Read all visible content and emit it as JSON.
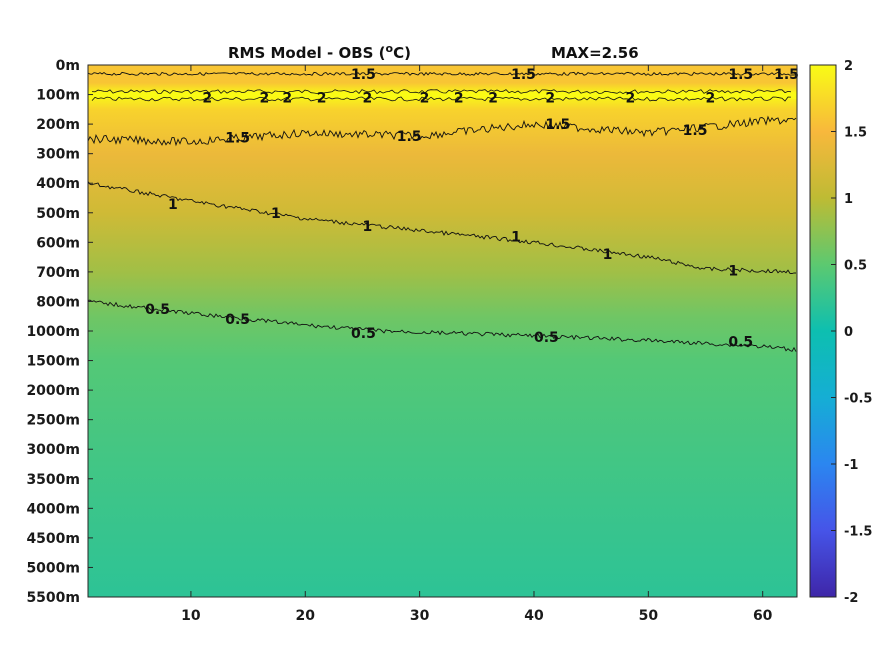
{
  "chart_data": {
    "type": "heatmap",
    "title": "RMS Model - OBS (°C)",
    "title_parts": {
      "prefix": "RMS Model - OBS (",
      "superscript": "o",
      "suffix": "C)"
    },
    "annotation": "MAX=2.56",
    "max_value": 2.56,
    "xlabel": "",
    "ylabel": "",
    "xlim": [
      1,
      63
    ],
    "x_ticks": [
      10,
      20,
      30,
      40,
      50,
      60
    ],
    "x_tick_labels": [
      "10",
      "20",
      "30",
      "40",
      "50",
      "60"
    ],
    "y_tick_labels": [
      "0m",
      "100m",
      "200m",
      "300m",
      "400m",
      "500m",
      "600m",
      "700m",
      "800m",
      "1000m",
      "1500m",
      "2000m",
      "2500m",
      "3000m",
      "3500m",
      "4000m",
      "4500m",
      "5000m",
      "5500m"
    ],
    "y_tick_depths": [
      0,
      100,
      200,
      300,
      400,
      500,
      600,
      700,
      800,
      1000,
      1500,
      2000,
      2500,
      3000,
      3500,
      4000,
      4500,
      5000,
      5500
    ],
    "colorbar": {
      "range": [
        -2,
        2
      ],
      "ticks": [
        2,
        1.5,
        1,
        0.5,
        0,
        -0.5,
        -1,
        -1.5,
        -2
      ],
      "tick_labels": [
        "2",
        "1.5",
        "1",
        "0.5",
        "0",
        "-0.5",
        "-1",
        "-1.5",
        "-2"
      ],
      "colormap": "parula"
    },
    "contours": [
      {
        "level": 2,
        "label": "2",
        "depth_band": [
          90,
          115
        ]
      },
      {
        "level": 1.5,
        "label": "1.5",
        "upper_depth": 30,
        "lower_depth": [
          [
            1,
            250
          ],
          [
            10,
            260
          ],
          [
            20,
            230
          ],
          [
            30,
            240
          ],
          [
            40,
            200
          ],
          [
            50,
            230
          ],
          [
            60,
            190
          ],
          [
            63,
            185
          ]
        ]
      },
      {
        "level": 1,
        "label": "1",
        "depth": [
          [
            1,
            400
          ],
          [
            10,
            460
          ],
          [
            20,
            520
          ],
          [
            30,
            560
          ],
          [
            40,
            600
          ],
          [
            50,
            650
          ],
          [
            55,
            690
          ],
          [
            63,
            700
          ]
        ]
      },
      {
        "level": 0.5,
        "label": "0.5",
        "depth": [
          [
            1,
            800
          ],
          [
            10,
            880
          ],
          [
            20,
            960
          ],
          [
            30,
            1020
          ],
          [
            40,
            1080
          ],
          [
            50,
            1160
          ],
          [
            60,
            1260
          ],
          [
            63,
            1320
          ]
        ]
      }
    ],
    "contour_labels": [
      {
        "text": "1.5",
        "x": 24,
        "depth": 30
      },
      {
        "text": "1.5",
        "x": 38,
        "depth": 30
      },
      {
        "text": "1.5",
        "x": 57,
        "depth": 30
      },
      {
        "text": "1.5",
        "x": 61,
        "depth": 30
      },
      {
        "text": "1.5",
        "x": 13,
        "depth": 245
      },
      {
        "text": "1.5",
        "x": 28,
        "depth": 240
      },
      {
        "text": "1.5",
        "x": 41,
        "depth": 200
      },
      {
        "text": "1.5",
        "x": 53,
        "depth": 220
      },
      {
        "text": "2",
        "x": 11,
        "depth": 110
      },
      {
        "text": "2",
        "x": 16,
        "depth": 110
      },
      {
        "text": "2",
        "x": 18,
        "depth": 110
      },
      {
        "text": "2",
        "x": 21,
        "depth": 110
      },
      {
        "text": "2",
        "x": 25,
        "depth": 110
      },
      {
        "text": "2",
        "x": 30,
        "depth": 110
      },
      {
        "text": "2",
        "x": 33,
        "depth": 110
      },
      {
        "text": "2",
        "x": 36,
        "depth": 110
      },
      {
        "text": "2",
        "x": 41,
        "depth": 110
      },
      {
        "text": "2",
        "x": 48,
        "depth": 110
      },
      {
        "text": "2",
        "x": 55,
        "depth": 110
      },
      {
        "text": "1",
        "x": 8,
        "depth": 470
      },
      {
        "text": "1",
        "x": 17,
        "depth": 500
      },
      {
        "text": "1",
        "x": 25,
        "depth": 545
      },
      {
        "text": "1",
        "x": 38,
        "depth": 580
      },
      {
        "text": "1",
        "x": 46,
        "depth": 640
      },
      {
        "text": "1",
        "x": 57,
        "depth": 695
      },
      {
        "text": "0.5",
        "x": 6,
        "depth": 850
      },
      {
        "text": "0.5",
        "x": 13,
        "depth": 920
      },
      {
        "text": "0.5",
        "x": 24,
        "depth": 1030
      },
      {
        "text": "0.5",
        "x": 40,
        "depth": 1100
      },
      {
        "text": "0.5",
        "x": 57,
        "depth": 1180
      }
    ],
    "field_description_levels": [
      {
        "depth": 0,
        "value": 1.6
      },
      {
        "depth": 60,
        "value": 1.6
      },
      {
        "depth": 100,
        "value": 2.2
      },
      {
        "depth": 150,
        "value": 1.7
      },
      {
        "depth": 300,
        "value": 1.4
      },
      {
        "depth": 500,
        "value": 1.15
      },
      {
        "depth": 700,
        "value": 0.85
      },
      {
        "depth": 900,
        "value": 0.6
      },
      {
        "depth": 1500,
        "value": 0.45
      },
      {
        "depth": 3000,
        "value": 0.35
      },
      {
        "depth": 5500,
        "value": 0.2
      }
    ]
  }
}
